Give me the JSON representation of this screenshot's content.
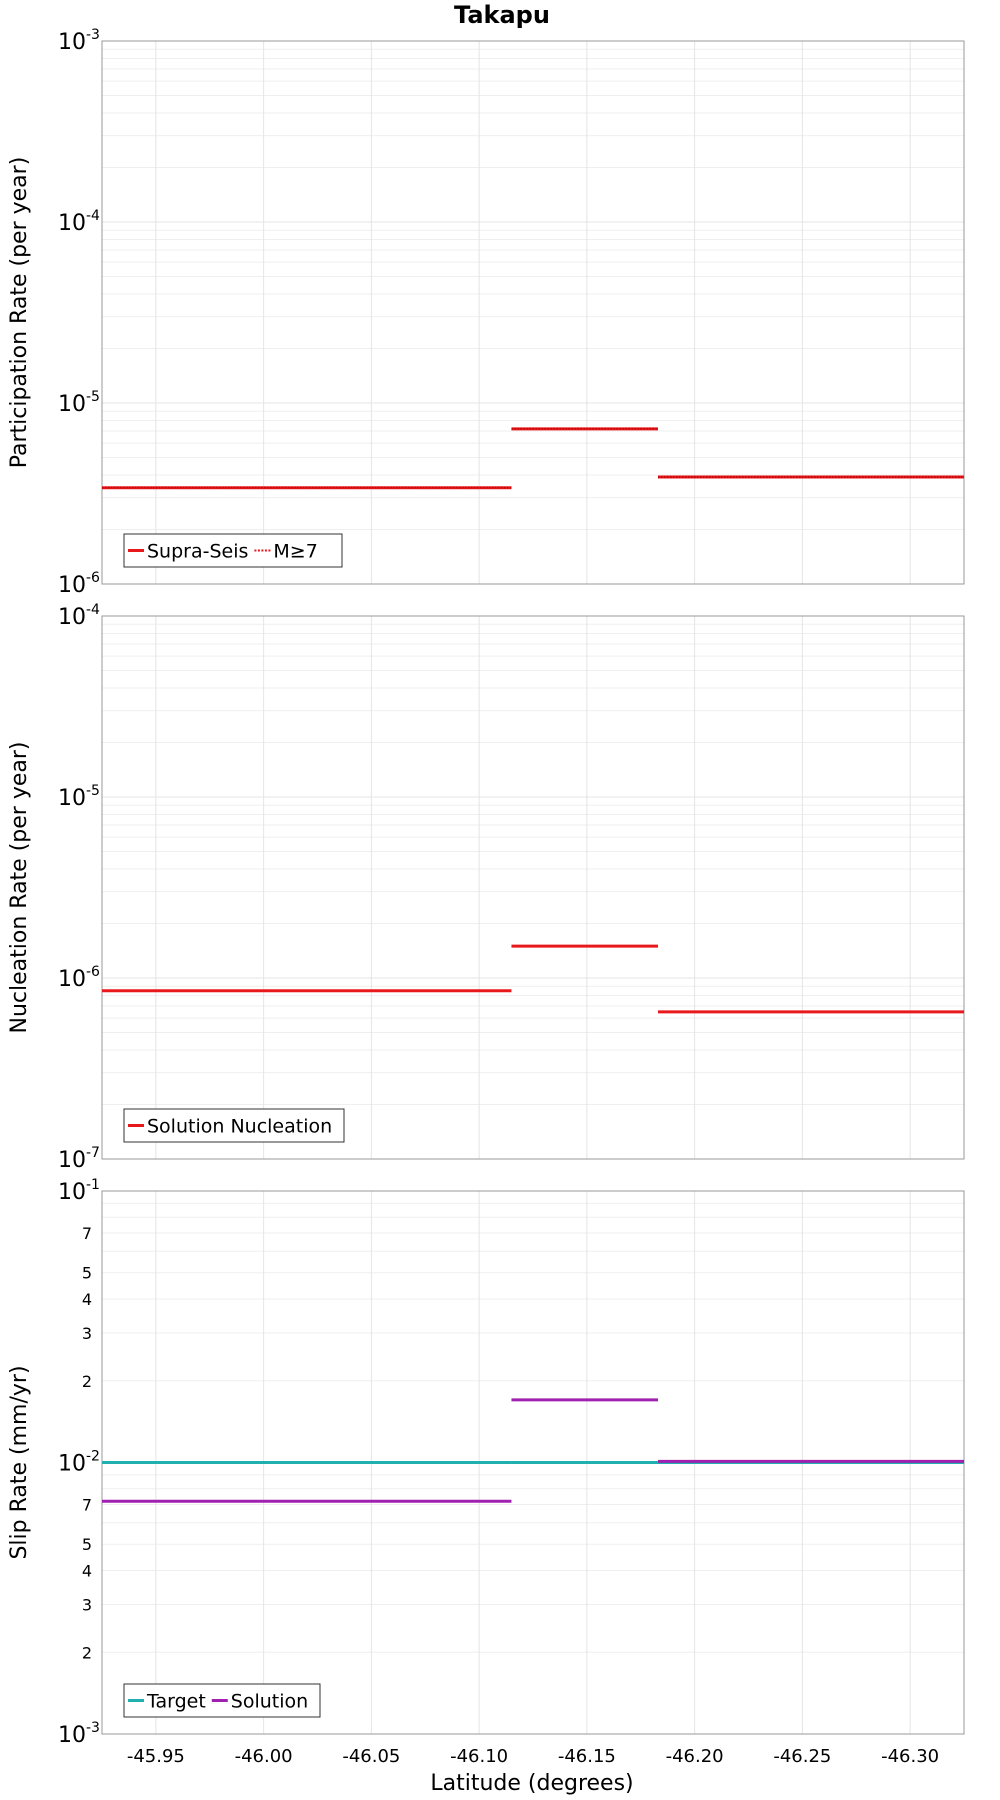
{
  "title": "Takapu",
  "xlabel": "Latitude (degrees)",
  "colors": {
    "red": "#e8181b",
    "teal": "#20b0b0",
    "purple": "#a020b0"
  },
  "chart_data": [
    {
      "type": "line",
      "ylabel": "Participation Rate (per year)",
      "yscale": "log",
      "ylim": [
        1e-06,
        0.001
      ],
      "xlim": [
        -45.925,
        -46.325
      ],
      "x_ticks": [
        "-45.95",
        "-46.00",
        "-46.05",
        "-46.10",
        "-46.15",
        "-46.20",
        "-46.25",
        "-46.30"
      ],
      "y_ticks": [
        {
          "base": "10",
          "exp": "-6"
        },
        {
          "base": "10",
          "exp": "-5"
        },
        {
          "base": "10",
          "exp": "-4"
        },
        {
          "base": "10",
          "exp": "-3"
        }
      ],
      "legend": {
        "position": "bottom-left",
        "entries": [
          "Supra-Seis",
          "M≥7"
        ]
      },
      "series": [
        {
          "name": "Supra-Seis",
          "color": "red",
          "style": "solid",
          "segments": [
            {
              "x0": -45.925,
              "x1": -46.115,
              "y": 3.4e-06
            },
            {
              "x0": -46.115,
              "x1": -46.183,
              "y": 7.2e-06
            },
            {
              "x0": -46.183,
              "x1": -46.325,
              "y": 3.9e-06
            }
          ]
        },
        {
          "name": "M≥7",
          "color": "red",
          "style": "dotted",
          "segments": [
            {
              "x0": -45.925,
              "x1": -46.115,
              "y": 3.4e-06
            },
            {
              "x0": -46.115,
              "x1": -46.183,
              "y": 7.2e-06
            },
            {
              "x0": -46.183,
              "x1": -46.325,
              "y": 3.9e-06
            }
          ]
        }
      ]
    },
    {
      "type": "line",
      "ylabel": "Nucleation Rate (per year)",
      "yscale": "log",
      "ylim": [
        1e-07,
        0.0001
      ],
      "xlim": [
        -45.925,
        -46.325
      ],
      "x_ticks": [
        "-45.95",
        "-46.00",
        "-46.05",
        "-46.10",
        "-46.15",
        "-46.20",
        "-46.25",
        "-46.30"
      ],
      "y_ticks": [
        {
          "base": "10",
          "exp": "-7"
        },
        {
          "base": "10",
          "exp": "-6"
        },
        {
          "base": "10",
          "exp": "-5"
        },
        {
          "base": "10",
          "exp": "-4"
        }
      ],
      "legend": {
        "position": "bottom-left",
        "entries": [
          "Solution Nucleation"
        ]
      },
      "series": [
        {
          "name": "Solution Nucleation",
          "color": "red",
          "style": "solid",
          "segments": [
            {
              "x0": -45.925,
              "x1": -46.115,
              "y": 8.5e-07
            },
            {
              "x0": -46.115,
              "x1": -46.183,
              "y": 1.5e-06
            },
            {
              "x0": -46.183,
              "x1": -46.325,
              "y": 6.5e-07
            }
          ]
        }
      ]
    },
    {
      "type": "line",
      "ylabel": "Slip Rate (mm/yr)",
      "yscale": "log",
      "ylim": [
        0.001,
        0.1
      ],
      "xlim": [
        -45.925,
        -46.325
      ],
      "x_ticks": [
        "-45.95",
        "-46.00",
        "-46.05",
        "-46.10",
        "-46.15",
        "-46.20",
        "-46.25",
        "-46.30"
      ],
      "y_ticks": [
        {
          "base": "10",
          "exp": "-3"
        },
        {
          "base": "10",
          "exp": "-2"
        },
        {
          "base": "10",
          "exp": "-1"
        }
      ],
      "y_minor_labels": [
        "2",
        "3",
        "4",
        "5",
        "7"
      ],
      "legend": {
        "position": "bottom-left",
        "entries": [
          "Target",
          "Solution"
        ]
      },
      "series": [
        {
          "name": "Target",
          "color": "teal",
          "style": "solid",
          "segments": [
            {
              "x0": -45.925,
              "x1": -46.115,
              "y": 0.01
            },
            {
              "x0": -46.115,
              "x1": -46.183,
              "y": 0.01
            },
            {
              "x0": -46.183,
              "x1": -46.325,
              "y": 0.01
            }
          ]
        },
        {
          "name": "Solution",
          "color": "purple",
          "style": "solid",
          "segments": [
            {
              "x0": -45.925,
              "x1": -46.115,
              "y": 0.0072
            },
            {
              "x0": -46.115,
              "x1": -46.183,
              "y": 0.017
            },
            {
              "x0": -46.183,
              "x1": -46.325,
              "y": 0.0101
            }
          ]
        }
      ]
    }
  ]
}
